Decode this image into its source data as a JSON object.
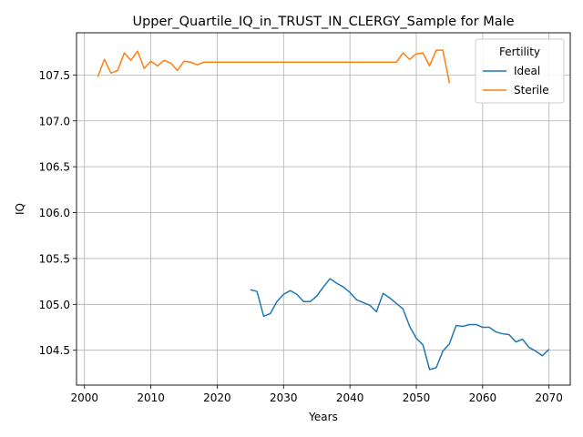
{
  "chart_data": {
    "type": "line",
    "title": "Upper_Quartile_IQ_in_TRUST_IN_CLERGY_Sample for Male",
    "xlabel": "Years",
    "ylabel": "IQ",
    "xlim": [
      1998.8,
      2073.2
    ],
    "ylim": [
      104.12,
      107.96
    ],
    "xticks": [
      2000,
      2010,
      2020,
      2030,
      2040,
      2050,
      2060,
      2070
    ],
    "yticks": [
      104.5,
      105.0,
      105.5,
      106.0,
      106.5,
      107.0,
      107.5
    ],
    "ytick_labels": [
      "104.5",
      "105.0",
      "105.5",
      "106.0",
      "106.5",
      "107.0",
      "107.5"
    ],
    "grid": true,
    "legend": {
      "title": "Fertility",
      "placement": "top-right"
    },
    "series": [
      {
        "name": "Ideal",
        "color": "#1f77b4",
        "x": [
          2025,
          2026,
          2027,
          2028,
          2029,
          2030,
          2031,
          2032,
          2033,
          2034,
          2035,
          2036,
          2037,
          2038,
          2039,
          2040,
          2041,
          2042,
          2043,
          2044,
          2045,
          2046,
          2047,
          2048,
          2049,
          2050,
          2051,
          2052,
          2053,
          2054,
          2055,
          2056,
          2057,
          2058,
          2059,
          2060,
          2061,
          2062,
          2063,
          2064,
          2065,
          2066,
          2067,
          2068,
          2069,
          2070
        ],
        "y": [
          105.16,
          105.14,
          104.87,
          104.9,
          105.03,
          105.11,
          105.15,
          105.11,
          105.03,
          105.03,
          105.09,
          105.19,
          105.28,
          105.23,
          105.19,
          105.13,
          105.05,
          105.02,
          104.99,
          104.92,
          105.12,
          105.07,
          105.01,
          104.95,
          104.76,
          104.63,
          104.56,
          104.29,
          104.31,
          104.49,
          104.57,
          104.77,
          104.76,
          104.78,
          104.78,
          104.75,
          104.75,
          104.7,
          104.68,
          104.67,
          104.59,
          104.62,
          104.53,
          104.49,
          104.44,
          104.51
        ]
      },
      {
        "name": "Sterile",
        "color": "#ff7f0e",
        "x": [
          2002,
          2003,
          2004,
          2005,
          2006,
          2007,
          2008,
          2009,
          2010,
          2011,
          2012,
          2013,
          2014,
          2015,
          2016,
          2017,
          2018,
          2019,
          2020,
          2021,
          2022,
          2023,
          2024,
          2025,
          2026,
          2027,
          2028,
          2029,
          2030,
          2031,
          2032,
          2033,
          2034,
          2035,
          2036,
          2037,
          2038,
          2039,
          2040,
          2041,
          2042,
          2043,
          2044,
          2045,
          2046,
          2047,
          2048,
          2049,
          2050,
          2051,
          2052,
          2053,
          2054,
          2055
        ],
        "y": [
          107.48,
          107.67,
          107.52,
          107.55,
          107.74,
          107.66,
          107.76,
          107.57,
          107.65,
          107.6,
          107.66,
          107.63,
          107.55,
          107.65,
          107.64,
          107.61,
          107.64,
          107.64,
          107.64,
          107.64,
          107.64,
          107.64,
          107.64,
          107.64,
          107.64,
          107.64,
          107.64,
          107.64,
          107.64,
          107.64,
          107.64,
          107.64,
          107.64,
          107.64,
          107.64,
          107.64,
          107.64,
          107.64,
          107.64,
          107.64,
          107.64,
          107.64,
          107.64,
          107.64,
          107.64,
          107.64,
          107.74,
          107.67,
          107.73,
          107.74,
          107.6,
          107.77,
          107.77,
          107.41
        ]
      }
    ]
  }
}
